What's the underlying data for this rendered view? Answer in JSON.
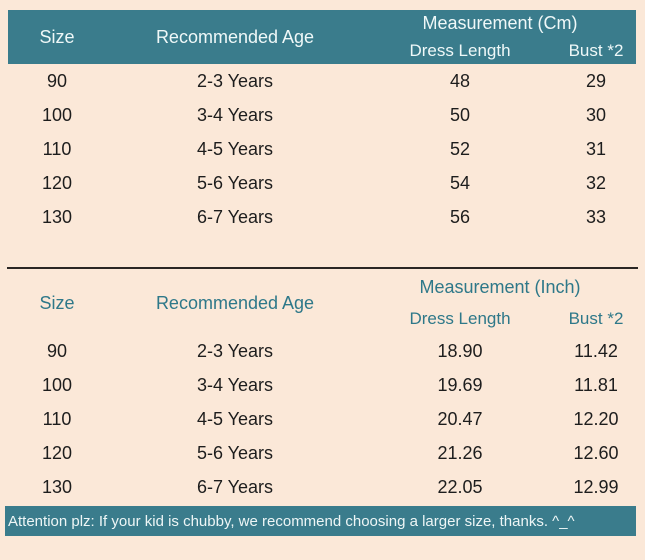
{
  "colors": {
    "background": "#fbe8d8",
    "accent_teal": "#3a7c8c",
    "header_text": "#eff8f8",
    "body_text": "#1d1d1d",
    "divider": "#2a2624"
  },
  "chart_data": [
    {
      "type": "table",
      "title": "Measurement (Cm)",
      "columns": [
        "Size",
        "Recommended Age",
        "Dress Length",
        "Bust *2"
      ],
      "header_group": {
        "label": "Measurement (Cm)",
        "spans": [
          "Dress Length",
          "Bust *2"
        ]
      },
      "rows": [
        [
          "90",
          "2-3 Years",
          "48",
          "29"
        ],
        [
          "100",
          "3-4 Years",
          "50",
          "30"
        ],
        [
          "110",
          "4-5 Years",
          "52",
          "31"
        ],
        [
          "120",
          "5-6 Years",
          "54",
          "32"
        ],
        [
          "130",
          "6-7 Years",
          "56",
          "33"
        ]
      ]
    },
    {
      "type": "table",
      "title": "Measurement (Inch)",
      "columns": [
        "Size",
        "Recommended Age",
        "Dress Length",
        "Bust *2"
      ],
      "header_group": {
        "label": "Measurement (Inch)",
        "spans": [
          "Dress Length",
          "Bust *2"
        ]
      },
      "rows": [
        [
          "90",
          "2-3 Years",
          "18.90",
          "11.42"
        ],
        [
          "100",
          "3-4 Years",
          "19.69",
          "11.81"
        ],
        [
          "110",
          "4-5 Years",
          "20.47",
          "12.20"
        ],
        [
          "120",
          "5-6 Years",
          "21.26",
          "12.60"
        ],
        [
          "130",
          "6-7 Years",
          "22.05",
          "12.99"
        ]
      ]
    }
  ],
  "footer": {
    "note": "Attention plz: If your kid is chubby, we recommend choosing a larger size, thanks. ^_^"
  }
}
